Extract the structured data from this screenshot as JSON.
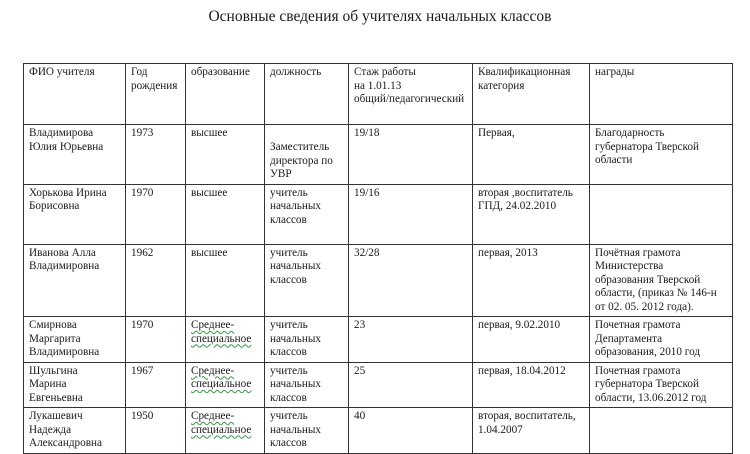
{
  "title": "Основные сведения об учителях начальных классов",
  "table": {
    "headers": [
      "ФИО учителя",
      "Год\nрождения",
      "образование",
      "должность",
      "Стаж работы\nна 1.01.13\nобщий/педагогический",
      "Квалификационная\nкатегория",
      "награды"
    ],
    "rows": [
      {
        "name": "Владимирова\nЮлия Юрьевна",
        "year": "1973",
        "education": "высшее",
        "position": "Заместитель\nдиректора по\nУВР",
        "experience": "19/18",
        "category": "Первая,",
        "awards": "Благодарность\nгубернатора Тверской\nобласти"
      },
      {
        "name": "Хорькова Ирина\nБорисовна",
        "year": "1970",
        "education": "высшее",
        "position": "учитель\nначальных\nклассов",
        "experience": "19/16",
        "category": "вторая ,воспитатель\nГПД, 24.02.2010",
        "awards": ""
      },
      {
        "name": "Иванова Алла\nВладимировна",
        "year": "1962",
        "education": "высшее",
        "position": "учитель\nначальных\nклассов",
        "experience": "32/28",
        "category": "первая, 2013",
        "awards": "Почётная грамота\nМинистерства\nобразования Тверской\nобласти, (приказ № 146-н\nот 02. 05. 2012 года)."
      },
      {
        "name": "Смирнова\nМаргарита\nВладимировна",
        "year": "1970",
        "education": "Среднее-\nспециальное",
        "position": "учитель\nначальных\nклассов",
        "experience": "23",
        "category": "первая, 9.02.2010",
        "awards": "Почетная грамота\nДепартамента\nобразования, 2010 год"
      },
      {
        "name": "Шульгина\nМарина\nЕвгеньевна",
        "year": "1967",
        "education": "Среднее-\nспециальное",
        "position": "учитель\nначальных\nклассов",
        "experience": "25",
        "category": "первая, 18.04.2012",
        "awards": "Почетная грамота\nгубернатора Тверской\nобласти, 13.06.2012 год"
      },
      {
        "name": "Лукашевич\nНадежда\nАлександровна",
        "year": "1950",
        "education": "Среднее-\nспециальное",
        "position": "учитель\nначальных\nклассов",
        "experience": "40",
        "category": "вторая, воспитатель,\n1.04.2007",
        "awards": ""
      }
    ]
  }
}
